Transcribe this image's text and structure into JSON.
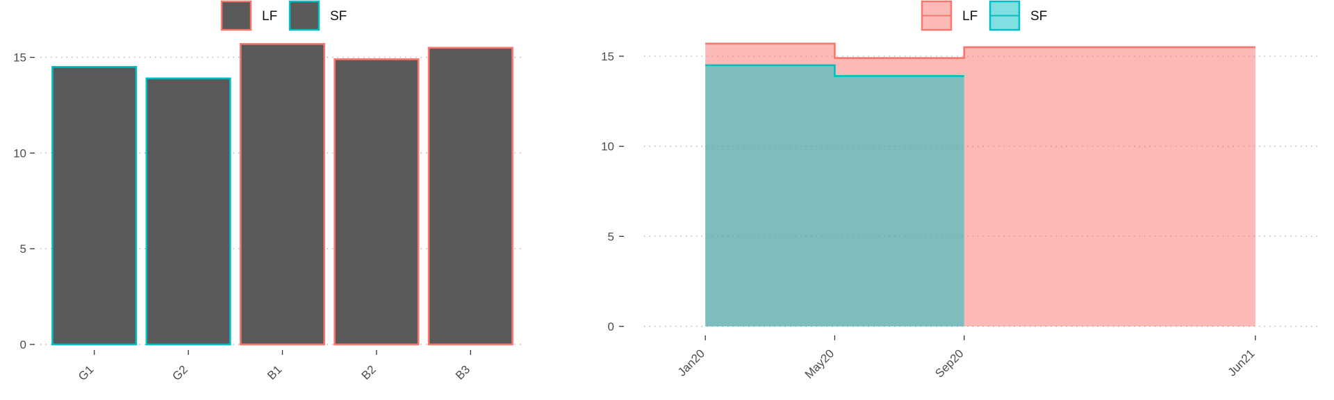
{
  "colors": {
    "lf": "#F8766D",
    "sf": "#00BFC4",
    "bar_fill": "#595959",
    "lf_area": "#F8766D",
    "sf_area": "#00BFC4",
    "grid": "#b5b5b5",
    "text": "#4d4d4d"
  },
  "chart_data": [
    {
      "type": "bar",
      "legend": {
        "position": "top",
        "entries": [
          "LF",
          "SF"
        ]
      },
      "categories": [
        "G1",
        "G2",
        "B1",
        "B2",
        "B3"
      ],
      "values": [
        14.5,
        13.9,
        15.7,
        14.9,
        15.5
      ],
      "outline_group": [
        "SF",
        "SF",
        "LF",
        "LF",
        "LF"
      ],
      "ylim": [
        0,
        16.0
      ],
      "yticks": [
        0,
        5,
        10,
        15
      ],
      "grid": "horizontal dotted"
    },
    {
      "type": "area",
      "step": true,
      "legend": {
        "position": "top",
        "entries": [
          "LF",
          "SF"
        ]
      },
      "xticks": [
        "Jan20",
        "May20",
        "Sep20",
        "Jun21"
      ],
      "xtick_dates": [
        "2020-01",
        "2020-05",
        "2020-09",
        "2021-06"
      ],
      "xlim": [
        "2019-11",
        "2021-08"
      ],
      "ylim": [
        0,
        16.0
      ],
      "yticks": [
        0,
        5,
        10,
        15
      ],
      "grid": "horizontal dotted",
      "series": [
        {
          "name": "LF",
          "segments": [
            {
              "from": "2020-01",
              "to": "2020-05",
              "value": 15.7
            },
            {
              "from": "2020-05",
              "to": "2020-09",
              "value": 14.9
            },
            {
              "from": "2020-09",
              "to": "2021-06",
              "value": 15.5
            }
          ]
        },
        {
          "name": "SF",
          "segments": [
            {
              "from": "2020-01",
              "to": "2020-05",
              "value": 14.5
            },
            {
              "from": "2020-05",
              "to": "2020-09",
              "value": 13.9
            }
          ]
        }
      ]
    }
  ]
}
